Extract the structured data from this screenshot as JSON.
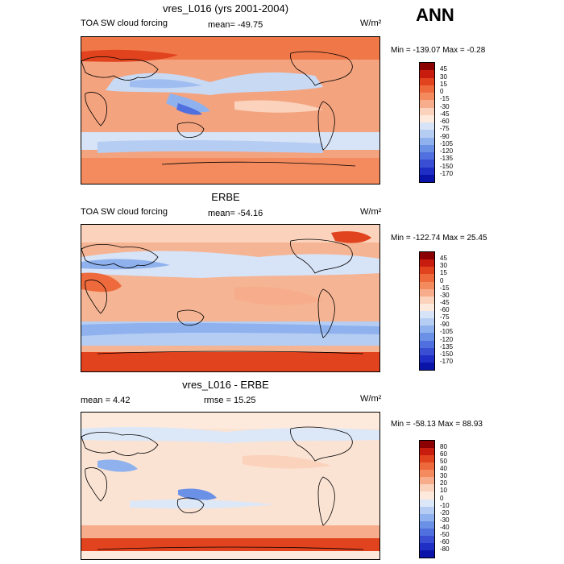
{
  "header": {
    "season": "ANN"
  },
  "panels": [
    {
      "title": "vres_L016 (yrs 2001-2004)",
      "left_label": "TOA SW cloud forcing",
      "center_label": "mean= -49.75",
      "units": "W/m²",
      "minmax": "Min = -139.07 Max =  -0.28",
      "background": "#f4a37f",
      "colorbar": {
        "labels": [
          "45",
          "30",
          "15",
          "0",
          "-15",
          "-30",
          "-45",
          "-60",
          "-75",
          "-90",
          "-105",
          "-120",
          "-135",
          "-150",
          "-170"
        ],
        "colors": [
          "#8b0000",
          "#c81d0e",
          "#e2431f",
          "#ee6a3c",
          "#f38b5f",
          "#f7ad8b",
          "#fbd2bb",
          "#fdeadc",
          "#d7e3f6",
          "#b6cdf3",
          "#8fb2ee",
          "#6b91e6",
          "#4f70de",
          "#3a4ed4",
          "#1f2ec4",
          "#0b14a8"
        ]
      }
    },
    {
      "title": "ERBE",
      "left_label": "TOA SW cloud forcing",
      "center_label": "mean= -54.16",
      "units": "W/m²",
      "minmax": "Min = -122.74 Max =  25.45",
      "background": "#f5b493",
      "colorbar": {
        "labels": [
          "45",
          "30",
          "15",
          "0",
          "-15",
          "-30",
          "-45",
          "-60",
          "-75",
          "-90",
          "-105",
          "-120",
          "-135",
          "-150",
          "-170"
        ],
        "colors": [
          "#8b0000",
          "#c81d0e",
          "#e2431f",
          "#ee6a3c",
          "#f38b5f",
          "#f7ad8b",
          "#fbd2bb",
          "#fdeadc",
          "#d7e3f6",
          "#b6cdf3",
          "#8fb2ee",
          "#6b91e6",
          "#4f70de",
          "#3a4ed4",
          "#1f2ec4",
          "#0b14a8"
        ]
      }
    },
    {
      "title": "vres_L016 - ERBE",
      "left_label": "mean =   4.42",
      "center_label": "rmse =  15.25",
      "units": "W/m²",
      "minmax": "Min = -58.13 Max =  88.93",
      "background": "#fbe3d4",
      "colorbar": {
        "labels": [
          "80",
          "60",
          "50",
          "40",
          "30",
          "20",
          "10",
          "0",
          "-10",
          "-20",
          "-30",
          "-40",
          "-50",
          "-60",
          "-80"
        ],
        "colors": [
          "#8b0000",
          "#c81d0e",
          "#e2431f",
          "#ee6a3c",
          "#f38b5f",
          "#f7ad8b",
          "#fbd2bb",
          "#fdeadc",
          "#dce7f7",
          "#b6cdf3",
          "#8fb2ee",
          "#6b91e6",
          "#4f70de",
          "#3a4ed4",
          "#1f2ec4",
          "#0b14a8"
        ]
      }
    }
  ]
}
